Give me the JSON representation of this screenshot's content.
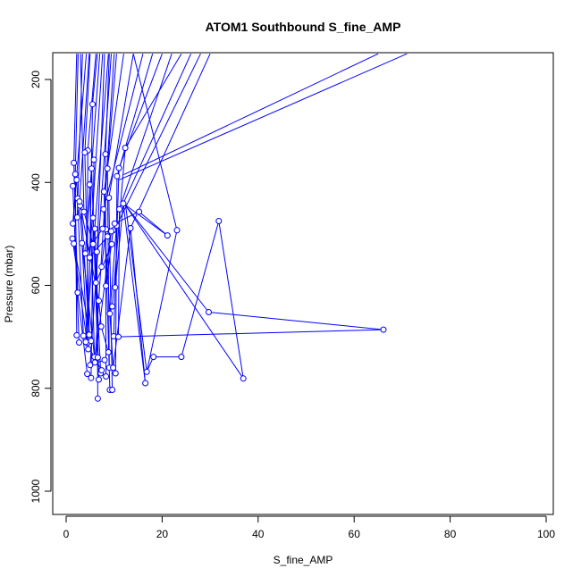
{
  "chart_data": {
    "type": "line",
    "title": "ATOM1 Southbound S_fine_AMP",
    "xlabel": "S_fine_AMP",
    "ylabel": "Pressure (mbar)",
    "xlim": [
      0,
      100
    ],
    "ylim": [
      1040,
      150
    ],
    "y_reversed": true,
    "grid": false,
    "xticks": [
      0,
      20,
      40,
      60,
      80,
      100
    ],
    "yticks": [
      200,
      400,
      600,
      800,
      1000
    ],
    "series_color": "#0000ff",
    "points": [
      [
        1.6,
        362
      ],
      [
        1.9,
        384
      ],
      [
        2.2,
        395
      ],
      [
        1.4,
        407
      ],
      [
        2.4,
        431
      ],
      [
        2.9,
        445
      ],
      [
        3.2,
        457
      ],
      [
        2.3,
        468
      ],
      [
        1.4,
        480
      ],
      [
        1.3,
        509
      ],
      [
        1.6,
        519
      ],
      [
        3.3,
        518
      ],
      [
        2.4,
        614
      ],
      [
        2.2,
        697
      ],
      [
        2.7,
        711
      ],
      [
        3.6,
        698
      ],
      [
        4.4,
        712
      ],
      [
        4.8,
        696
      ],
      [
        5.2,
        708
      ],
      [
        4.6,
        724
      ],
      [
        5.9,
        739
      ],
      [
        6.6,
        740
      ],
      [
        4.4,
        772
      ],
      [
        5.2,
        780
      ],
      [
        6.8,
        783
      ],
      [
        6.6,
        820
      ],
      [
        7.2,
        771
      ],
      [
        8.3,
        777
      ],
      [
        9.0,
        760
      ],
      [
        9.1,
        803
      ],
      [
        9.6,
        803
      ],
      [
        9.8,
        760
      ],
      [
        10.3,
        771
      ],
      [
        9.9,
        699
      ],
      [
        10.9,
        700
      ],
      [
        9.6,
        641
      ],
      [
        10.2,
        604
      ],
      [
        9.1,
        655
      ],
      [
        8.3,
        601
      ],
      [
        7.4,
        564
      ],
      [
        6.4,
        535
      ],
      [
        6.0,
        490
      ],
      [
        5.6,
        469
      ],
      [
        4.9,
        404
      ],
      [
        5.3,
        373
      ],
      [
        5.8,
        356
      ],
      [
        4.5,
        338
      ],
      [
        3.9,
        342
      ],
      [
        5.5,
        248
      ],
      [
        8.2,
        345
      ],
      [
        8.6,
        373
      ],
      [
        7.9,
        418
      ],
      [
        8.9,
        430
      ],
      [
        7.8,
        452
      ],
      [
        8.3,
        491
      ],
      [
        9.8,
        493
      ],
      [
        10.5,
        484
      ],
      [
        11.1,
        452
      ],
      [
        11.0,
        372
      ],
      [
        10.6,
        388
      ],
      [
        11.9,
        441
      ],
      [
        12.3,
        333
      ],
      [
        13.4,
        489
      ],
      [
        15.2,
        457
      ],
      [
        21.1,
        503
      ],
      [
        23.1,
        493
      ],
      [
        29.7,
        652
      ],
      [
        31.8,
        475
      ],
      [
        36.9,
        781
      ],
      [
        66.1,
        686
      ],
      [
        24.0,
        739
      ],
      [
        18.2,
        739
      ],
      [
        16.8,
        768
      ],
      [
        16.5,
        790
      ],
      [
        4.0,
        538
      ],
      [
        4.9,
        546
      ],
      [
        6.2,
        595
      ],
      [
        7.6,
        490
      ],
      [
        8.6,
        505
      ],
      [
        9.5,
        520
      ],
      [
        4.1,
        710
      ],
      [
        5.0,
        755
      ],
      [
        6.0,
        750
      ],
      [
        7.4,
        765
      ],
      [
        8.0,
        745
      ],
      [
        3.7,
        457
      ],
      [
        2.8,
        437
      ],
      [
        5.6,
        520
      ],
      [
        6.8,
        630
      ],
      [
        7.3,
        680
      ],
      [
        8.8,
        730
      ],
      [
        9.4,
        495
      ],
      [
        10.1,
        480
      ]
    ],
    "segments": [
      [
        [
          2.2,
          150
        ],
        [
          1.6,
          362
        ]
      ],
      [
        [
          2.5,
          150
        ],
        [
          1.9,
          384
        ]
      ],
      [
        [
          3.4,
          150
        ],
        [
          2.3,
          468
        ]
      ],
      [
        [
          4.2,
          150
        ],
        [
          1.4,
          480
        ]
      ],
      [
        [
          1.6,
          362
        ],
        [
          2.4,
          614
        ]
      ],
      [
        [
          1.9,
          384
        ],
        [
          2.2,
          697
        ]
      ],
      [
        [
          2.2,
          395
        ],
        [
          3.6,
          698
        ]
      ],
      [
        [
          1.4,
          407
        ],
        [
          2.7,
          711
        ]
      ],
      [
        [
          2.9,
          445
        ],
        [
          4.4,
          712
        ]
      ],
      [
        [
          3.2,
          457
        ],
        [
          4.8,
          696
        ]
      ],
      [
        [
          1.3,
          509
        ],
        [
          4.6,
          724
        ]
      ],
      [
        [
          1.6,
          519
        ],
        [
          5.2,
          708
        ]
      ],
      [
        [
          3.3,
          518
        ],
        [
          5.9,
          739
        ]
      ],
      [
        [
          2.4,
          614
        ],
        [
          4.4,
          772
        ]
      ],
      [
        [
          4.4,
          712
        ],
        [
          4.5,
          338
        ]
      ],
      [
        [
          4.8,
          696
        ],
        [
          3.9,
          342
        ]
      ],
      [
        [
          4.6,
          724
        ],
        [
          5.5,
          248
        ]
      ],
      [
        [
          5.9,
          739
        ],
        [
          4.9,
          404
        ]
      ],
      [
        [
          6.6,
          740
        ],
        [
          5.3,
          373
        ]
      ],
      [
        [
          5.2,
          780
        ],
        [
          5.8,
          356
        ]
      ],
      [
        [
          6.8,
          783
        ],
        [
          6.0,
          490
        ]
      ],
      [
        [
          6.6,
          820
        ],
        [
          6.4,
          535
        ]
      ],
      [
        [
          7.2,
          771
        ],
        [
          5.6,
          469
        ]
      ],
      [
        [
          8.3,
          777
        ],
        [
          8.2,
          345
        ]
      ],
      [
        [
          9.0,
          760
        ],
        [
          8.6,
          373
        ]
      ],
      [
        [
          9.1,
          803
        ],
        [
          7.9,
          418
        ]
      ],
      [
        [
          9.6,
          803
        ],
        [
          8.9,
          430
        ]
      ],
      [
        [
          9.8,
          760
        ],
        [
          7.8,
          452
        ]
      ],
      [
        [
          10.3,
          771
        ],
        [
          10.6,
          388
        ]
      ],
      [
        [
          9.9,
          699
        ],
        [
          11.0,
          372
        ]
      ],
      [
        [
          10.9,
          700
        ],
        [
          11.1,
          452
        ]
      ],
      [
        [
          9.6,
          641
        ],
        [
          12.3,
          333
        ]
      ],
      [
        [
          10.2,
          604
        ],
        [
          11.9,
          441
        ]
      ],
      [
        [
          9.1,
          655
        ],
        [
          10.5,
          484
        ]
      ],
      [
        [
          8.3,
          601
        ],
        [
          9.8,
          493
        ]
      ],
      [
        [
          7.4,
          564
        ],
        [
          8.3,
          491
        ]
      ],
      [
        [
          4.5,
          338
        ],
        [
          6.2,
          150
        ]
      ],
      [
        [
          3.9,
          342
        ],
        [
          5.0,
          150
        ]
      ],
      [
        [
          5.5,
          248
        ],
        [
          6.5,
          150
        ]
      ],
      [
        [
          8.2,
          345
        ],
        [
          9.0,
          150
        ]
      ],
      [
        [
          8.6,
          373
        ],
        [
          10.5,
          150
        ]
      ],
      [
        [
          7.9,
          418
        ],
        [
          12.0,
          150
        ]
      ],
      [
        [
          8.9,
          430
        ],
        [
          14.0,
          150
        ]
      ],
      [
        [
          7.8,
          452
        ],
        [
          16.0,
          150
        ]
      ],
      [
        [
          10.6,
          388
        ],
        [
          18.0,
          150
        ]
      ],
      [
        [
          11.0,
          372
        ],
        [
          20.0,
          150
        ]
      ],
      [
        [
          11.1,
          452
        ],
        [
          22.0,
          150
        ]
      ],
      [
        [
          12.3,
          333
        ],
        [
          24.0,
          150
        ]
      ],
      [
        [
          11.9,
          441
        ],
        [
          26.0,
          150
        ]
      ],
      [
        [
          10.5,
          484
        ],
        [
          28.0,
          150
        ]
      ],
      [
        [
          13.4,
          489
        ],
        [
          30.0,
          150
        ]
      ],
      [
        [
          12.0,
          385
        ],
        [
          65.0,
          150
        ]
      ],
      [
        [
          11.0,
          395
        ],
        [
          71.0,
          150
        ]
      ],
      [
        [
          15.2,
          457
        ],
        [
          10.1,
          480
        ]
      ],
      [
        [
          15.2,
          457
        ],
        [
          21.1,
          503
        ]
      ],
      [
        [
          21.1,
          503
        ],
        [
          11.9,
          441
        ]
      ],
      [
        [
          23.1,
          493
        ],
        [
          14.0,
          150
        ]
      ],
      [
        [
          23.1,
          493
        ],
        [
          16.8,
          768
        ]
      ],
      [
        [
          16.8,
          768
        ],
        [
          12.4,
          445
        ]
      ],
      [
        [
          16.5,
          790
        ],
        [
          11.9,
          441
        ]
      ],
      [
        [
          12.4,
          445
        ],
        [
          29.7,
          652
        ]
      ],
      [
        [
          29.7,
          652
        ],
        [
          66.1,
          686
        ]
      ],
      [
        [
          66.1,
          686
        ],
        [
          10.9,
          700
        ]
      ],
      [
        [
          12.4,
          445
        ],
        [
          36.9,
          781
        ]
      ],
      [
        [
          36.9,
          781
        ],
        [
          31.8,
          475
        ]
      ],
      [
        [
          31.8,
          475
        ],
        [
          24.0,
          739
        ]
      ],
      [
        [
          24.0,
          739
        ],
        [
          18.2,
          739
        ]
      ],
      [
        [
          18.2,
          739
        ],
        [
          16.8,
          768
        ]
      ],
      [
        [
          13.4,
          489
        ],
        [
          16.5,
          790
        ]
      ],
      [
        [
          9.8,
          760
        ],
        [
          13.4,
          489
        ]
      ],
      [
        [
          4.0,
          538
        ],
        [
          7.6,
          490
        ]
      ],
      [
        [
          4.9,
          546
        ],
        [
          8.6,
          505
        ]
      ],
      [
        [
          6.2,
          595
        ],
        [
          9.5,
          520
        ]
      ],
      [
        [
          4.1,
          710
        ],
        [
          7.4,
          765
        ]
      ],
      [
        [
          5.0,
          755
        ],
        [
          8.0,
          745
        ]
      ],
      [
        [
          6.0,
          750
        ],
        [
          9.4,
          495
        ]
      ],
      [
        [
          3.7,
          457
        ],
        [
          5.6,
          520
        ]
      ],
      [
        [
          2.8,
          437
        ],
        [
          6.8,
          630
        ]
      ],
      [
        [
          6.8,
          630
        ],
        [
          7.3,
          680
        ]
      ],
      [
        [
          7.3,
          680
        ],
        [
          8.8,
          730
        ]
      ],
      [
        [
          3.0,
          150
        ],
        [
          3.7,
          457
        ]
      ],
      [
        [
          4.8,
          150
        ],
        [
          2.8,
          437
        ]
      ],
      [
        [
          7.0,
          150
        ],
        [
          4.0,
          538
        ]
      ],
      [
        [
          7.6,
          150
        ],
        [
          4.9,
          546
        ]
      ],
      [
        [
          8.0,
          150
        ],
        [
          6.2,
          595
        ]
      ],
      [
        [
          8.8,
          150
        ],
        [
          4.1,
          710
        ]
      ],
      [
        [
          9.4,
          150
        ],
        [
          5.0,
          755
        ]
      ],
      [
        [
          10.0,
          150
        ],
        [
          6.0,
          750
        ]
      ]
    ]
  }
}
